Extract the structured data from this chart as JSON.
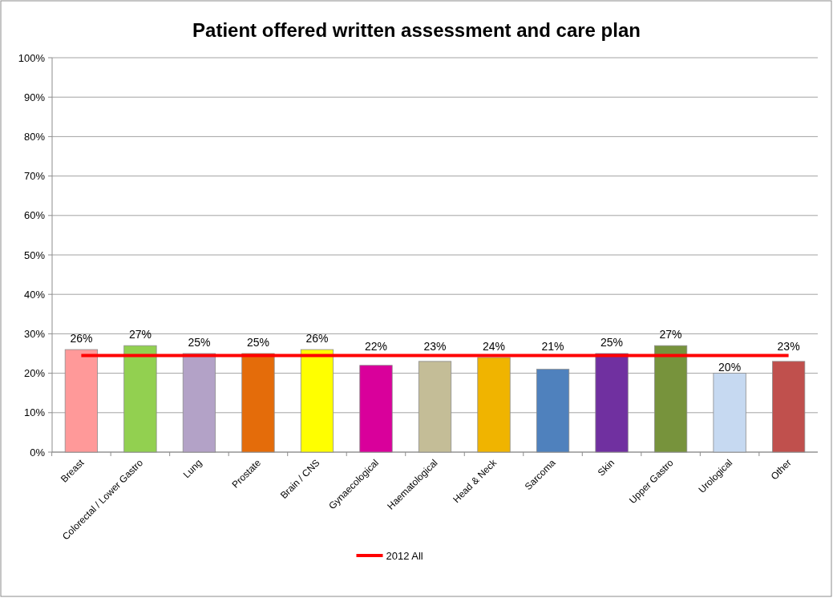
{
  "chart_data": {
    "type": "bar",
    "title": "Patient offered written assessment and care plan",
    "categories": [
      "Breast",
      "Colorectal / Lower Gastro",
      "Lung",
      "Prostate",
      "Brain / CNS",
      "Gynaecological",
      "Haematological",
      "Head & Neck",
      "Sarcoma",
      "Skin",
      "Upper Gastro",
      "Urological",
      "Other"
    ],
    "series": [
      {
        "values": [
          26,
          27,
          25,
          25,
          26,
          22,
          23,
          24,
          21,
          25,
          27,
          20,
          23
        ],
        "colors": [
          "#ff9999",
          "#92d050",
          "#b3a2c7",
          "#e46c0a",
          "#ffff00",
          "#d9009b",
          "#c4bd97",
          "#f0b400",
          "#4f81bd",
          "#7030a0",
          "#77933c",
          "#c6d9f1",
          "#c0504d"
        ],
        "value_labels": [
          "26%",
          "27%",
          "25%",
          "25%",
          "26%",
          "22%",
          "23%",
          "24%",
          "21%",
          "25%",
          "27%",
          "20%",
          "23%"
        ]
      },
      {
        "type": "line",
        "name": "2012 All",
        "color": "#ff0000",
        "values": [
          24.5,
          24.5,
          24.5,
          24.5,
          24.5,
          24.5,
          24.5,
          24.5,
          24.5,
          24.5,
          24.5,
          24.5,
          24.5
        ]
      }
    ],
    "ylim": [
      0,
      100
    ],
    "yticks": [
      {
        "value": 0,
        "label": "0%"
      },
      {
        "value": 10,
        "label": "10%"
      },
      {
        "value": 20,
        "label": "20%"
      },
      {
        "value": 30,
        "label": "30%"
      },
      {
        "value": 40,
        "label": "40%"
      },
      {
        "value": 50,
        "label": "50%"
      },
      {
        "value": 60,
        "label": "60%"
      },
      {
        "value": 70,
        "label": "70%"
      },
      {
        "value": 80,
        "label": "80%"
      },
      {
        "value": 90,
        "label": "90%"
      },
      {
        "value": 100,
        "label": "100%"
      }
    ],
    "grid": "y",
    "legend": "bottom",
    "marker": "none",
    "line_style": "solid"
  }
}
